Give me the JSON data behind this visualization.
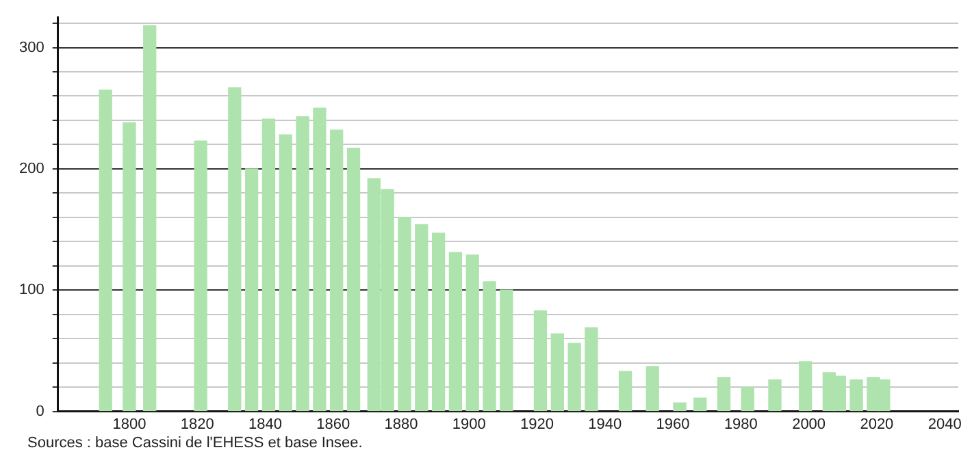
{
  "chart_data": {
    "type": "bar",
    "x": [
      1793,
      1800,
      1806,
      1821,
      1831,
      1836,
      1841,
      1846,
      1851,
      1856,
      1861,
      1866,
      1872,
      1876,
      1881,
      1886,
      1891,
      1896,
      1901,
      1906,
      1911,
      1921,
      1926,
      1931,
      1936,
      1946,
      1954,
      1962,
      1968,
      1975,
      1982,
      1990,
      1999,
      2006,
      2009,
      2014,
      2019,
      2022
    ],
    "values": [
      265,
      238,
      318,
      223,
      267,
      200,
      241,
      228,
      243,
      250,
      232,
      217,
      192,
      183,
      160,
      154,
      147,
      131,
      129,
      107,
      100,
      83,
      64,
      56,
      69,
      33,
      37,
      7,
      11,
      28,
      20,
      26,
      41,
      32,
      29,
      26,
      28,
      26
    ],
    "color": "#aee3ae",
    "xlim": [
      1779,
      2044
    ],
    "xticks": [
      1800,
      1820,
      1840,
      1860,
      1880,
      1900,
      1920,
      1940,
      1960,
      1980,
      2000,
      2020,
      2040
    ],
    "ylim": [
      0,
      325
    ],
    "yticks": [
      0,
      {
        "value": 20,
        "label": null
      },
      {
        "value": 40,
        "label": null
      },
      {
        "value": 60,
        "label": null
      },
      {
        "value": 80,
        "label": null
      },
      100,
      {
        "value": 120,
        "label": null
      },
      {
        "value": 140,
        "label": null
      },
      {
        "value": 160,
        "label": null
      },
      {
        "value": 180,
        "label": null
      },
      200,
      {
        "value": 220,
        "label": null
      },
      {
        "value": 240,
        "label": null
      },
      {
        "value": 260,
        "label": null
      },
      {
        "value": 280,
        "label": null
      },
      300,
      {
        "value": 320,
        "label": null
      }
    ],
    "grid": "y",
    "legend": false,
    "annotations": [
      "Sources : base Cassini de l'EHESS et base Insee."
    ]
  }
}
